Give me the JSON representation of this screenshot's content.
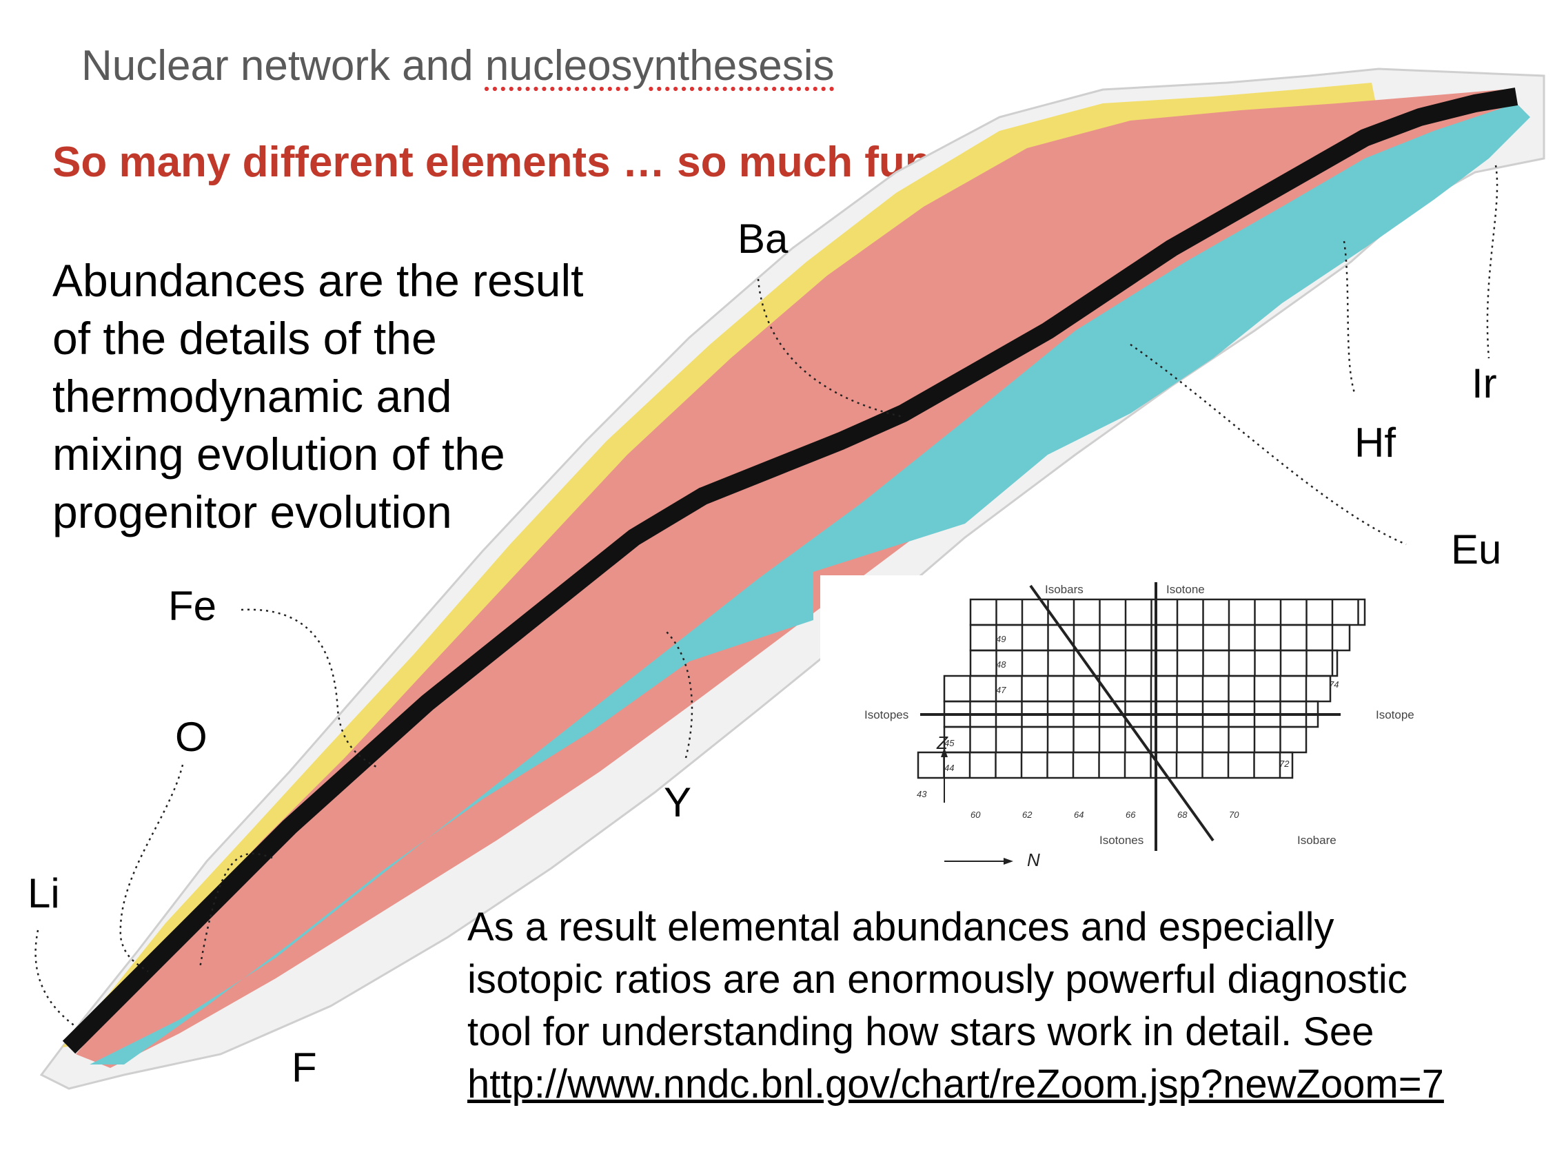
{
  "slide": {
    "title_prefix": "Nuclear network and ",
    "title_word": "nucleosynthesesis",
    "subtitle": "So many different elements … so much fun …",
    "paragraph_lines": [
      "Abundances are the result",
      "of the details of the",
      "thermodynamic and",
      "mixing evolution of the",
      "progenitor evolution"
    ],
    "bottom_lines": [
      "As a result elemental abundances and especially",
      "isotopic ratios are an enormously powerful diagnostic",
      "tool for understanding how stars work in detail. See"
    ],
    "link": "http://www.nndc.bnl.gov/chart/reZoom.jsp?newZoom=7"
  },
  "element_labels": {
    "ba": "Ba",
    "ir": "Ir",
    "hf": "Hf",
    "eu": "Eu",
    "fe": "Fe",
    "o": "O",
    "y": "Y",
    "li": "Li",
    "f": "F"
  },
  "inset": {
    "isobars": "Isobars",
    "isotone": "Isotone",
    "isotopes": "Isotopes",
    "isotope": "Isotope",
    "isotones": "Isotones",
    "isobare": "Isobare",
    "z_axis": "Z",
    "n_axis": "N",
    "z_ticks": [
      "49",
      "48",
      "47",
      "45",
      "44",
      "43"
    ],
    "n_ticks": [
      "60",
      "62",
      "64",
      "66",
      "68",
      "70"
    ],
    "marks": [
      "74",
      "72"
    ]
  },
  "colors": {
    "title": "#5a5a5a",
    "subtitle": "#c0392b",
    "proton_rich": "#e9928a",
    "neutron_rich": "#6ccbd0",
    "stable": "#111111",
    "alpha_decay": "#f2dc5d"
  }
}
